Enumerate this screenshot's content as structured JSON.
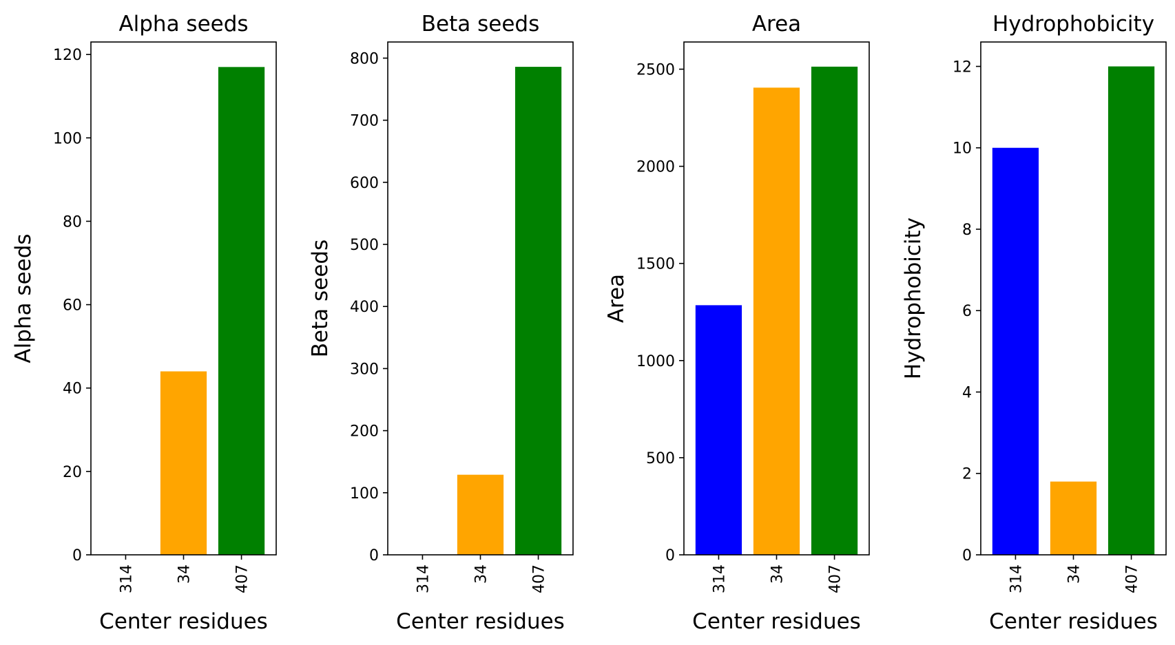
{
  "chart_data": [
    {
      "type": "bar",
      "title": "Alpha seeds",
      "xlabel": "Center residues",
      "ylabel": "Alpha seeds",
      "categories": [
        "314",
        "34",
        "407"
      ],
      "values": [
        0,
        44,
        117
      ],
      "colors": [
        "#0000ff",
        "#ffa500",
        "#008000"
      ],
      "ylim": [
        0,
        123
      ],
      "yticks": [
        0,
        20,
        40,
        60,
        80,
        100,
        120
      ],
      "grid": false
    },
    {
      "type": "bar",
      "title": "Beta seeds",
      "xlabel": "Center residues",
      "ylabel": "Beta seeds",
      "categories": [
        "314",
        "34",
        "407"
      ],
      "values": [
        0,
        129,
        786
      ],
      "colors": [
        "#0000ff",
        "#ffa500",
        "#008000"
      ],
      "ylim": [
        0,
        826
      ],
      "yticks": [
        0,
        100,
        200,
        300,
        400,
        500,
        600,
        700,
        800
      ],
      "grid": false
    },
    {
      "type": "bar",
      "title": "Area",
      "xlabel": "Center residues",
      "ylabel": "Area",
      "categories": [
        "314",
        "34",
        "407"
      ],
      "values": [
        1285,
        2405,
        2513
      ],
      "colors": [
        "#0000ff",
        "#ffa500",
        "#008000"
      ],
      "ylim": [
        0,
        2640
      ],
      "yticks": [
        0,
        500,
        1000,
        1500,
        2000,
        2500
      ],
      "grid": false
    },
    {
      "type": "bar",
      "title": "Hydrophobicity",
      "xlabel": "Center residues",
      "ylabel": "Hydrophobicity",
      "categories": [
        "314",
        "34",
        "407"
      ],
      "values": [
        10,
        1.8,
        12
      ],
      "colors": [
        "#0000ff",
        "#ffa500",
        "#008000"
      ],
      "ylim": [
        0,
        12.6
      ],
      "yticks": [
        0,
        2,
        4,
        6,
        8,
        10,
        12
      ],
      "grid": false
    }
  ]
}
